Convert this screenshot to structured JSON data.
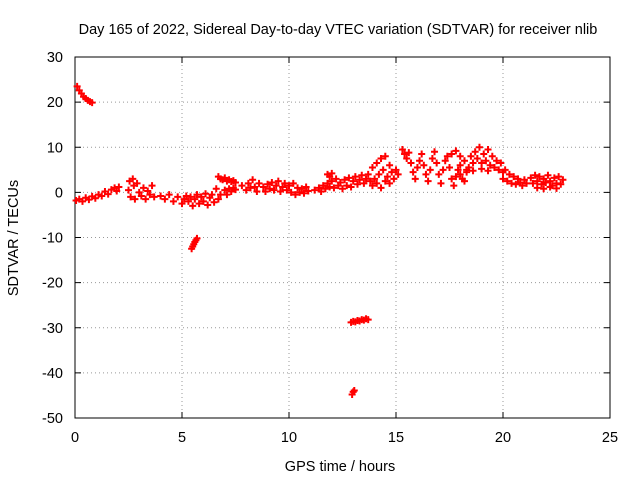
{
  "chart_data": {
    "type": "scatter",
    "title": "Day 165 of 2022, Sidereal Day-to-day VTEC variation (SDTVAR) for receiver nlib",
    "xlabel": "GPS time / hours",
    "ylabel": "SDTVAR / TECUs",
    "xlim": [
      0,
      25
    ],
    "ylim": [
      -50,
      30
    ],
    "xticks": [
      0,
      5,
      10,
      15,
      20,
      25
    ],
    "yticks": [
      30,
      20,
      10,
      0,
      -10,
      -20,
      -30,
      -40,
      -50
    ],
    "xtick_labels": [
      "0",
      "5",
      "10",
      "15",
      "20",
      "25"
    ],
    "ytick_labels": [
      "30",
      "20",
      "10",
      "0",
      "-10",
      "-20",
      "-30",
      "-40",
      "-50"
    ],
    "grid": true,
    "marker": "+",
    "series_color": "#ff0000",
    "series": [
      {
        "name": "SDTVAR",
        "points": [
          [
            0.1,
            23.5
          ],
          [
            0.2,
            22.6
          ],
          [
            0.3,
            21.9
          ],
          [
            0.4,
            21.2
          ],
          [
            0.5,
            20.8
          ],
          [
            0.6,
            20.4
          ],
          [
            0.7,
            20.1
          ],
          [
            0.8,
            19.9
          ],
          [
            0.05,
            -1.8
          ],
          [
            0.2,
            -1.5
          ],
          [
            0.35,
            -2.0
          ],
          [
            0.5,
            -1.2
          ],
          [
            0.65,
            -1.6
          ],
          [
            0.8,
            -0.9
          ],
          [
            0.95,
            -1.3
          ],
          [
            1.1,
            -0.5
          ],
          [
            1.25,
            -0.8
          ],
          [
            1.4,
            0.2
          ],
          [
            1.55,
            -0.4
          ],
          [
            1.7,
            0.6
          ],
          [
            1.85,
            1.0
          ],
          [
            1.95,
            0.3
          ],
          [
            2.05,
            1.2
          ],
          [
            2.5,
            0.5
          ],
          [
            2.55,
            2.5
          ],
          [
            2.6,
            -1.0
          ],
          [
            2.7,
            3.0
          ],
          [
            2.75,
            1.5
          ],
          [
            2.8,
            -1.5
          ],
          [
            2.9,
            2.0
          ],
          [
            3.0,
            0.0
          ],
          [
            3.1,
            -0.8
          ],
          [
            3.2,
            1.0
          ],
          [
            3.3,
            -1.5
          ],
          [
            3.4,
            0.3
          ],
          [
            3.5,
            -0.5
          ],
          [
            3.6,
            1.5
          ],
          [
            3.7,
            -1.0
          ],
          [
            4.0,
            -0.8
          ],
          [
            4.2,
            -1.5
          ],
          [
            4.4,
            -0.5
          ],
          [
            4.6,
            -2.0
          ],
          [
            4.8,
            -1.0
          ],
          [
            5.0,
            -2.5
          ],
          [
            5.1,
            -1.5
          ],
          [
            5.2,
            -0.8
          ],
          [
            5.3,
            -2.0
          ],
          [
            5.4,
            -1.0
          ],
          [
            5.5,
            -3.0
          ],
          [
            5.6,
            -1.5
          ],
          [
            5.7,
            -0.5
          ],
          [
            5.8,
            -2.5
          ],
          [
            5.9,
            -1.0
          ],
          [
            6.0,
            -2.0
          ],
          [
            6.1,
            -0.3
          ],
          [
            6.2,
            -2.8
          ],
          [
            6.3,
            -1.2
          ],
          [
            6.4,
            -0.5
          ],
          [
            6.5,
            -2.2
          ],
          [
            6.6,
            0.8
          ],
          [
            6.7,
            -1.5
          ],
          [
            6.8,
            -0.5
          ],
          [
            5.45,
            -12.5
          ],
          [
            5.5,
            -12.0
          ],
          [
            5.55,
            -11.5
          ],
          [
            5.6,
            -11.0
          ],
          [
            5.65,
            -10.6
          ],
          [
            5.7,
            -10.2
          ],
          [
            6.7,
            3.5
          ],
          [
            6.8,
            3.0
          ],
          [
            6.9,
            2.8
          ],
          [
            7.0,
            3.2
          ],
          [
            7.1,
            2.5
          ],
          [
            7.2,
            2.8
          ],
          [
            7.3,
            2.4
          ],
          [
            7.4,
            2.6
          ],
          [
            7.5,
            2.2
          ],
          [
            7.0,
            0.5
          ],
          [
            7.1,
            -0.5
          ],
          [
            7.2,
            0.8
          ],
          [
            7.3,
            0.2
          ],
          [
            7.4,
            1.0
          ],
          [
            7.5,
            0.6
          ],
          [
            7.8,
            1.5
          ],
          [
            8.0,
            0.5
          ],
          [
            8.1,
            2.0
          ],
          [
            8.2,
            1.0
          ],
          [
            8.3,
            2.8
          ],
          [
            8.4,
            1.2
          ],
          [
            8.5,
            0.2
          ],
          [
            8.6,
            2.0
          ],
          [
            8.8,
            1.2
          ],
          [
            8.9,
            0.2
          ],
          [
            9.0,
            1.8
          ],
          [
            9.1,
            0.8
          ],
          [
            9.2,
            2.2
          ],
          [
            9.3,
            0.5
          ],
          [
            9.4,
            1.5
          ],
          [
            9.5,
            2.5
          ],
          [
            9.6,
            0.2
          ],
          [
            9.7,
            1.2
          ],
          [
            9.8,
            2.0
          ],
          [
            9.9,
            0.5
          ],
          [
            10.0,
            1.5
          ],
          [
            10.1,
            0.0
          ],
          [
            10.2,
            2.0
          ],
          [
            10.3,
            -0.5
          ],
          [
            10.4,
            1.0
          ],
          [
            10.5,
            0.0
          ],
          [
            10.6,
            0.8
          ],
          [
            10.7,
            -0.2
          ],
          [
            10.8,
            1.2
          ],
          [
            10.9,
            0.3
          ],
          [
            11.2,
            0.5
          ],
          [
            11.4,
            1.0
          ],
          [
            11.5,
            0.2
          ],
          [
            11.6,
            1.5
          ],
          [
            11.7,
            0.8
          ],
          [
            11.8,
            2.0
          ],
          [
            11.9,
            1.2
          ],
          [
            12.0,
            2.5
          ],
          [
            12.1,
            1.0
          ],
          [
            12.2,
            3.0
          ],
          [
            12.3,
            1.5
          ],
          [
            12.4,
            2.2
          ],
          [
            12.5,
            0.8
          ],
          [
            12.6,
            2.8
          ],
          [
            12.7,
            1.5
          ],
          [
            12.8,
            3.2
          ],
          [
            12.9,
            1.2
          ],
          [
            13.0,
            2.5
          ],
          [
            13.1,
            3.5
          ],
          [
            13.2,
            1.8
          ],
          [
            13.3,
            2.8
          ],
          [
            13.4,
            3.8
          ],
          [
            13.5,
            2.0
          ],
          [
            13.6,
            3.0
          ],
          [
            11.8,
            4.0
          ],
          [
            11.9,
            3.5
          ],
          [
            12.0,
            4.2
          ],
          [
            12.9,
            -28.8
          ],
          [
            13.0,
            -28.6
          ],
          [
            13.1,
            -28.7
          ],
          [
            13.2,
            -28.4
          ],
          [
            13.3,
            -28.5
          ],
          [
            13.4,
            -28.2
          ],
          [
            13.5,
            -28.3
          ],
          [
            13.6,
            -28.0
          ],
          [
            13.7,
            -28.2
          ],
          [
            12.95,
            -44.8
          ],
          [
            13.0,
            -44.2
          ],
          [
            13.05,
            -43.9
          ],
          [
            13.7,
            4.0
          ],
          [
            13.8,
            2.5
          ],
          [
            13.9,
            5.5
          ],
          [
            14.0,
            3.0
          ],
          [
            14.1,
            6.5
          ],
          [
            14.2,
            4.0
          ],
          [
            14.3,
            7.5
          ],
          [
            14.4,
            5.0
          ],
          [
            14.5,
            8.0
          ],
          [
            14.6,
            3.5
          ],
          [
            14.7,
            6.0
          ],
          [
            14.8,
            4.5
          ],
          [
            14.9,
            3.0
          ],
          [
            15.0,
            5.0
          ],
          [
            15.1,
            4.0
          ],
          [
            13.9,
            1.5
          ],
          [
            14.1,
            2.0
          ],
          [
            14.3,
            1.0
          ],
          [
            14.5,
            2.5
          ],
          [
            14.7,
            2.0
          ],
          [
            15.3,
            9.5
          ],
          [
            15.4,
            8.5
          ],
          [
            15.5,
            7.5
          ],
          [
            15.6,
            8.8
          ],
          [
            15.7,
            6.5
          ],
          [
            15.8,
            4.5
          ],
          [
            15.9,
            3.0
          ],
          [
            16.0,
            5.5
          ],
          [
            16.1,
            7.0
          ],
          [
            16.2,
            8.5
          ],
          [
            16.3,
            6.0
          ],
          [
            16.4,
            4.0
          ],
          [
            16.5,
            2.5
          ],
          [
            16.6,
            5.0
          ],
          [
            16.7,
            7.5
          ],
          [
            16.8,
            9.0
          ],
          [
            16.9,
            6.5
          ],
          [
            17.0,
            4.0
          ],
          [
            17.1,
            2.0
          ],
          [
            17.2,
            5.0
          ],
          [
            17.3,
            7.0
          ],
          [
            17.4,
            8.0
          ],
          [
            17.5,
            5.5
          ],
          [
            17.6,
            3.0
          ],
          [
            17.7,
            1.5
          ],
          [
            17.8,
            3.5
          ],
          [
            17.9,
            5.0
          ],
          [
            18.0,
            4.0
          ],
          [
            18.1,
            3.0
          ],
          [
            18.2,
            2.5
          ],
          [
            18.3,
            4.5
          ],
          [
            17.6,
            8.5
          ],
          [
            17.8,
            9.2
          ],
          [
            18.0,
            8.0
          ],
          [
            18.0,
            6.0
          ],
          [
            18.2,
            7.0
          ],
          [
            18.4,
            5.5
          ],
          [
            18.5,
            8.0
          ],
          [
            18.6,
            6.5
          ],
          [
            18.7,
            9.0
          ],
          [
            18.8,
            7.5
          ],
          [
            18.9,
            10.0
          ],
          [
            19.0,
            6.5
          ],
          [
            19.1,
            8.5
          ],
          [
            19.2,
            7.0
          ],
          [
            19.3,
            9.5
          ],
          [
            19.4,
            6.0
          ],
          [
            19.5,
            8.0
          ],
          [
            19.6,
            5.5
          ],
          [
            19.7,
            7.0
          ],
          [
            19.8,
            5.0
          ],
          [
            19.9,
            6.5
          ],
          [
            20.0,
            4.5
          ],
          [
            18.3,
            5.0
          ],
          [
            18.6,
            4.8
          ],
          [
            19.0,
            5.2
          ],
          [
            19.3,
            4.8
          ],
          [
            20.0,
            3.0
          ],
          [
            20.1,
            5.0
          ],
          [
            20.2,
            2.5
          ],
          [
            20.3,
            4.0
          ],
          [
            20.4,
            2.0
          ],
          [
            20.5,
            3.5
          ],
          [
            20.6,
            1.8
          ],
          [
            20.7,
            3.0
          ],
          [
            20.8,
            2.2
          ],
          [
            20.9,
            1.5
          ],
          [
            21.0,
            2.8
          ],
          [
            21.1,
            2.0
          ],
          [
            21.3,
            3.2
          ],
          [
            21.4,
            2.0
          ],
          [
            21.5,
            3.8
          ],
          [
            21.6,
            2.5
          ],
          [
            21.7,
            3.5
          ],
          [
            21.8,
            1.8
          ],
          [
            21.9,
            3.0
          ],
          [
            22.0,
            2.2
          ],
          [
            22.1,
            3.8
          ],
          [
            22.2,
            2.5
          ],
          [
            22.3,
            1.5
          ],
          [
            22.4,
            3.2
          ],
          [
            22.5,
            2.0
          ],
          [
            22.6,
            3.5
          ],
          [
            22.7,
            1.8
          ],
          [
            22.8,
            2.8
          ],
          [
            21.6,
            1.0
          ],
          [
            21.9,
            0.8
          ],
          [
            22.2,
            1.2
          ],
          [
            22.5,
            0.9
          ]
        ]
      }
    ]
  }
}
